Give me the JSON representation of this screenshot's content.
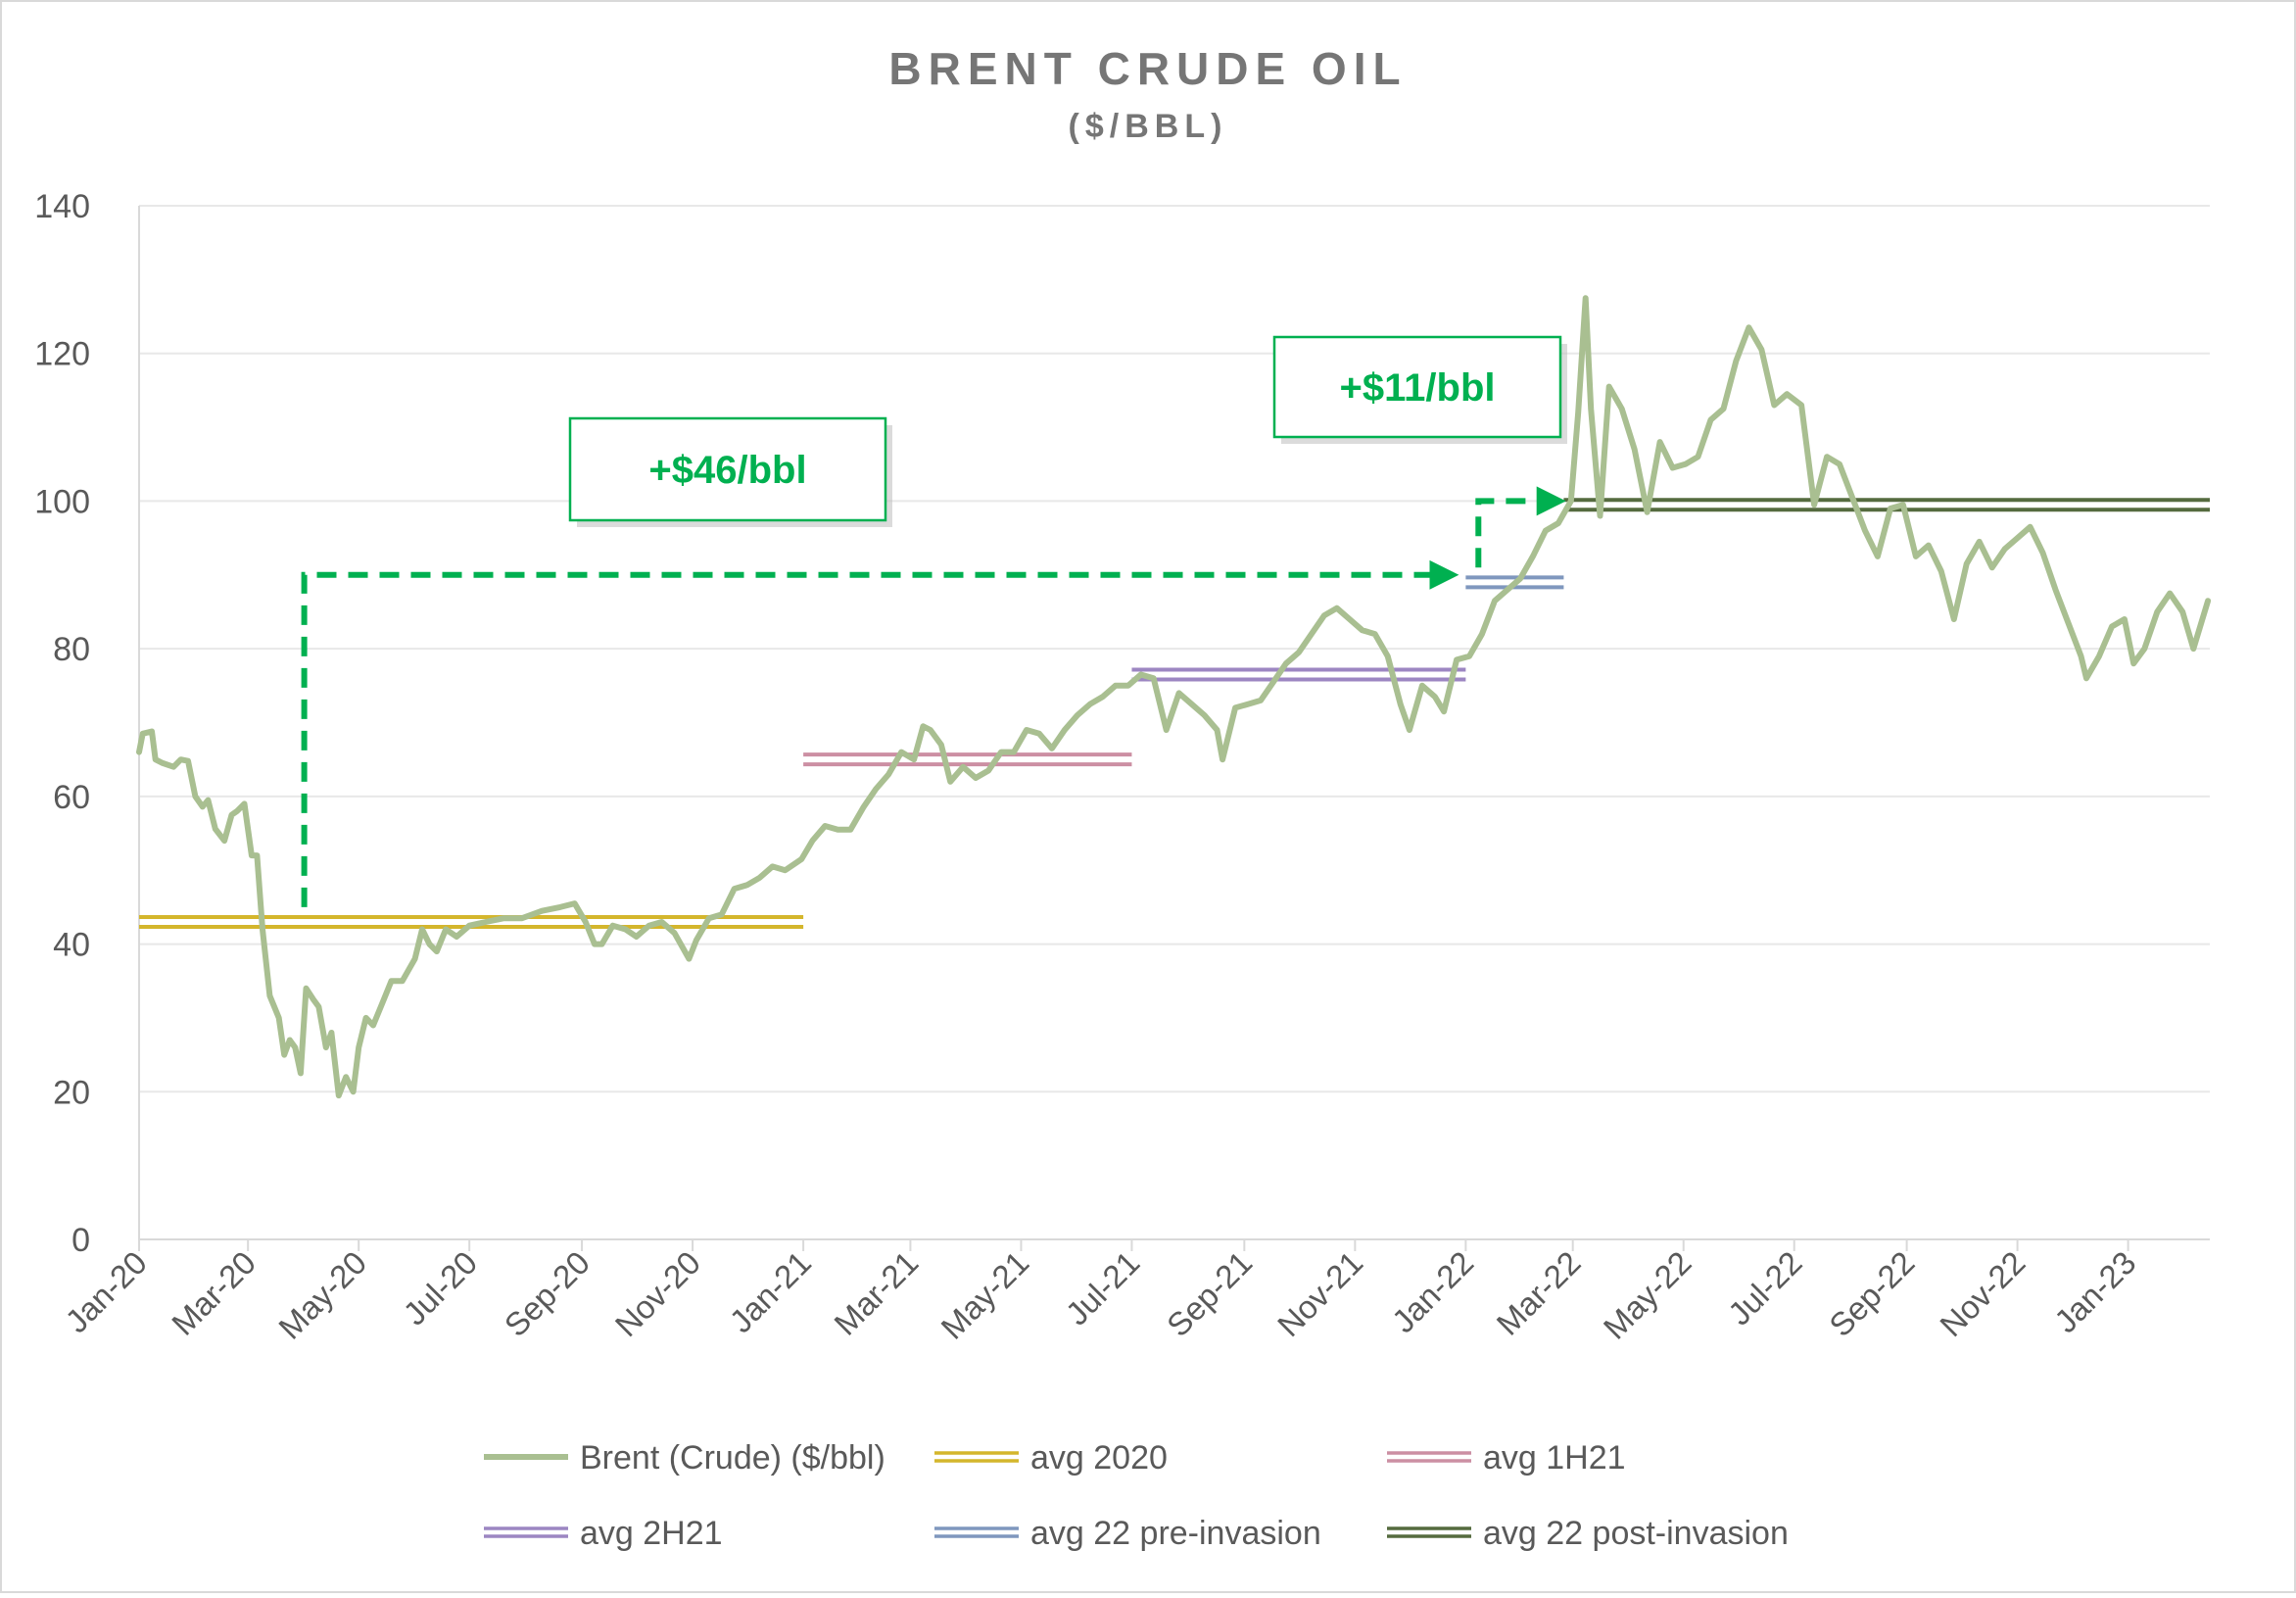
{
  "chart_data": {
    "type": "line",
    "title": "BRENT CRUDE OIL",
    "subtitle": "($/BBL)",
    "xlabel": "",
    "ylabel": "",
    "ylim": [
      0,
      140
    ],
    "yticks": [
      "0",
      "20",
      "40",
      "60",
      "80",
      "100",
      "120",
      "140"
    ],
    "xlim": [
      "2020-01-01",
      "2023-02-15"
    ],
    "xticks": [
      {
        "date": "2020-01-01",
        "label": "Jan-20"
      },
      {
        "date": "2020-03-01",
        "label": "Mar-20"
      },
      {
        "date": "2020-05-01",
        "label": "May-20"
      },
      {
        "date": "2020-07-01",
        "label": "Jul-20"
      },
      {
        "date": "2020-09-01",
        "label": "Sep-20"
      },
      {
        "date": "2020-11-01",
        "label": "Nov-20"
      },
      {
        "date": "2021-01-01",
        "label": "Jan-21"
      },
      {
        "date": "2021-03-01",
        "label": "Mar-21"
      },
      {
        "date": "2021-05-01",
        "label": "May-21"
      },
      {
        "date": "2021-07-01",
        "label": "Jul-21"
      },
      {
        "date": "2021-09-01",
        "label": "Sep-21"
      },
      {
        "date": "2021-11-01",
        "label": "Nov-21"
      },
      {
        "date": "2022-01-01",
        "label": "Jan-22"
      },
      {
        "date": "2022-03-01",
        "label": "Mar-22"
      },
      {
        "date": "2022-05-01",
        "label": "May-22"
      },
      {
        "date": "2022-07-01",
        "label": "Jul-22"
      },
      {
        "date": "2022-09-01",
        "label": "Sep-22"
      },
      {
        "date": "2022-11-01",
        "label": "Nov-22"
      },
      {
        "date": "2023-01-01",
        "label": "Jan-23"
      }
    ],
    "grid": "horizontal",
    "legend_position": "bottom",
    "series": [
      {
        "name": "Brent (Crude) ($/bbl)",
        "color": "#A9BF91",
        "style": "line",
        "points": [
          [
            "2020-01-01",
            66
          ],
          [
            "2020-01-03",
            68.5
          ],
          [
            "2020-01-08",
            68.8
          ],
          [
            "2020-01-10",
            65
          ],
          [
            "2020-01-14",
            64.5
          ],
          [
            "2020-01-20",
            64
          ],
          [
            "2020-01-24",
            65
          ],
          [
            "2020-01-28",
            64.8
          ],
          [
            "2020-02-01",
            60
          ],
          [
            "2020-02-05",
            58.6
          ],
          [
            "2020-02-08",
            59.5
          ],
          [
            "2020-02-12",
            55.6
          ],
          [
            "2020-02-17",
            54
          ],
          [
            "2020-02-21",
            57.5
          ],
          [
            "2020-02-24",
            58
          ],
          [
            "2020-02-28",
            59
          ],
          [
            "2020-03-03",
            52
          ],
          [
            "2020-03-06",
            52
          ],
          [
            "2020-03-09",
            42
          ],
          [
            "2020-03-13",
            33
          ],
          [
            "2020-03-18",
            30
          ],
          [
            "2020-03-21",
            25
          ],
          [
            "2020-03-24",
            27
          ],
          [
            "2020-03-27",
            26
          ],
          [
            "2020-03-30",
            22.5
          ],
          [
            "2020-04-02",
            34
          ],
          [
            "2020-04-06",
            32.5
          ],
          [
            "2020-04-09",
            31.5
          ],
          [
            "2020-04-13",
            26
          ],
          [
            "2020-04-16",
            28
          ],
          [
            "2020-04-20",
            19.5
          ],
          [
            "2020-04-24",
            22
          ],
          [
            "2020-04-28",
            20
          ],
          [
            "2020-05-01",
            26
          ],
          [
            "2020-05-05",
            30
          ],
          [
            "2020-05-09",
            29
          ],
          [
            "2020-05-14",
            32
          ],
          [
            "2020-05-19",
            35
          ],
          [
            "2020-05-25",
            35
          ],
          [
            "2020-06-01",
            38
          ],
          [
            "2020-06-05",
            42
          ],
          [
            "2020-06-09",
            40
          ],
          [
            "2020-06-13",
            39
          ],
          [
            "2020-06-18",
            42
          ],
          [
            "2020-06-24",
            41
          ],
          [
            "2020-07-01",
            42.5
          ],
          [
            "2020-07-10",
            43
          ],
          [
            "2020-07-20",
            43.5
          ],
          [
            "2020-07-30",
            43.5
          ],
          [
            "2020-08-10",
            44.5
          ],
          [
            "2020-08-20",
            45
          ],
          [
            "2020-08-28",
            45.5
          ],
          [
            "2020-09-03",
            43
          ],
          [
            "2020-09-08",
            40
          ],
          [
            "2020-09-12",
            40
          ],
          [
            "2020-09-18",
            42.5
          ],
          [
            "2020-09-25",
            42
          ],
          [
            "2020-10-01",
            41
          ],
          [
            "2020-10-08",
            42.5
          ],
          [
            "2020-10-15",
            43
          ],
          [
            "2020-10-22",
            41.5
          ],
          [
            "2020-10-30",
            38
          ],
          [
            "2020-11-03",
            40.5
          ],
          [
            "2020-11-10",
            43.5
          ],
          [
            "2020-11-17",
            44
          ],
          [
            "2020-11-24",
            47.5
          ],
          [
            "2020-12-01",
            48
          ],
          [
            "2020-12-08",
            49
          ],
          [
            "2020-12-15",
            50.5
          ],
          [
            "2020-12-22",
            50
          ],
          [
            "2020-12-31",
            51.5
          ],
          [
            "2021-01-06",
            54
          ],
          [
            "2021-01-13",
            56
          ],
          [
            "2021-01-20",
            55.5
          ],
          [
            "2021-01-27",
            55.5
          ],
          [
            "2021-02-03",
            58.5
          ],
          [
            "2021-02-10",
            61
          ],
          [
            "2021-02-17",
            63
          ],
          [
            "2021-02-24",
            66
          ],
          [
            "2021-03-03",
            65
          ],
          [
            "2021-03-08",
            69.5
          ],
          [
            "2021-03-12",
            69
          ],
          [
            "2021-03-18",
            67
          ],
          [
            "2021-03-23",
            62
          ],
          [
            "2021-03-30",
            64
          ],
          [
            "2021-04-06",
            62.5
          ],
          [
            "2021-04-13",
            63.5
          ],
          [
            "2021-04-20",
            66
          ],
          [
            "2021-04-27",
            66
          ],
          [
            "2021-05-04",
            69
          ],
          [
            "2021-05-11",
            68.5
          ],
          [
            "2021-05-18",
            66.5
          ],
          [
            "2021-05-25",
            69
          ],
          [
            "2021-06-01",
            71
          ],
          [
            "2021-06-08",
            72.5
          ],
          [
            "2021-06-15",
            73.5
          ],
          [
            "2021-06-22",
            75
          ],
          [
            "2021-06-29",
            75
          ],
          [
            "2021-07-06",
            76.5
          ],
          [
            "2021-07-13",
            76
          ],
          [
            "2021-07-20",
            69
          ],
          [
            "2021-07-27",
            74
          ],
          [
            "2021-08-03",
            72.5
          ],
          [
            "2021-08-10",
            71
          ],
          [
            "2021-08-17",
            69
          ],
          [
            "2021-08-20",
            65
          ],
          [
            "2021-08-27",
            72
          ],
          [
            "2021-09-03",
            72.5
          ],
          [
            "2021-09-10",
            73
          ],
          [
            "2021-09-17",
            75.5
          ],
          [
            "2021-09-24",
            78
          ],
          [
            "2021-10-01",
            79.5
          ],
          [
            "2021-10-08",
            82
          ],
          [
            "2021-10-15",
            84.5
          ],
          [
            "2021-10-22",
            85.5
          ],
          [
            "2021-10-29",
            84
          ],
          [
            "2021-11-05",
            82.5
          ],
          [
            "2021-11-12",
            82
          ],
          [
            "2021-11-19",
            79
          ],
          [
            "2021-11-26",
            72.5
          ],
          [
            "2021-12-01",
            69
          ],
          [
            "2021-12-08",
            75
          ],
          [
            "2021-12-15",
            73.5
          ],
          [
            "2021-12-20",
            71.5
          ],
          [
            "2021-12-27",
            78.5
          ],
          [
            "2022-01-03",
            79
          ],
          [
            "2022-01-10",
            82
          ],
          [
            "2022-01-17",
            86.5
          ],
          [
            "2022-01-24",
            88
          ],
          [
            "2022-01-31",
            89.5
          ],
          [
            "2022-02-07",
            92.5
          ],
          [
            "2022-02-14",
            96
          ],
          [
            "2022-02-21",
            97
          ],
          [
            "2022-02-28",
            100
          ],
          [
            "2022-03-04",
            112
          ],
          [
            "2022-03-08",
            127.5
          ],
          [
            "2022-03-11",
            112.5
          ],
          [
            "2022-03-16",
            98
          ],
          [
            "2022-03-21",
            115.5
          ],
          [
            "2022-03-28",
            112.5
          ],
          [
            "2022-04-04",
            107
          ],
          [
            "2022-04-11",
            98.5
          ],
          [
            "2022-04-18",
            108
          ],
          [
            "2022-04-25",
            104.5
          ],
          [
            "2022-05-02",
            105
          ],
          [
            "2022-05-09",
            106
          ],
          [
            "2022-05-16",
            111
          ],
          [
            "2022-05-23",
            112.5
          ],
          [
            "2022-05-30",
            119
          ],
          [
            "2022-06-06",
            123.5
          ],
          [
            "2022-06-13",
            120.5
          ],
          [
            "2022-06-20",
            113
          ],
          [
            "2022-06-27",
            114.5
          ],
          [
            "2022-07-05",
            113
          ],
          [
            "2022-07-12",
            99.5
          ],
          [
            "2022-07-19",
            106
          ],
          [
            "2022-07-26",
            105
          ],
          [
            "2022-08-02",
            100.5
          ],
          [
            "2022-08-09",
            96
          ],
          [
            "2022-08-16",
            92.5
          ],
          [
            "2022-08-23",
            99
          ],
          [
            "2022-08-30",
            99.5
          ],
          [
            "2022-09-06",
            92.5
          ],
          [
            "2022-09-13",
            94
          ],
          [
            "2022-09-20",
            90.5
          ],
          [
            "2022-09-27",
            84
          ],
          [
            "2022-10-04",
            91.5
          ],
          [
            "2022-10-11",
            94.5
          ],
          [
            "2022-10-18",
            91
          ],
          [
            "2022-10-25",
            93.5
          ],
          [
            "2022-11-01",
            95
          ],
          [
            "2022-11-08",
            96.5
          ],
          [
            "2022-11-15",
            93
          ],
          [
            "2022-11-22",
            88
          ],
          [
            "2022-11-29",
            83.5
          ],
          [
            "2022-12-06",
            79
          ],
          [
            "2022-12-09",
            76
          ],
          [
            "2022-12-16",
            79
          ],
          [
            "2022-12-23",
            83
          ],
          [
            "2022-12-30",
            84
          ],
          [
            "2023-01-04",
            78
          ],
          [
            "2023-01-10",
            80
          ],
          [
            "2023-01-17",
            85
          ],
          [
            "2023-01-24",
            87.5
          ],
          [
            "2023-01-31",
            85
          ],
          [
            "2023-02-06",
            80
          ],
          [
            "2023-02-14",
            86.5
          ]
        ]
      },
      {
        "name": "avg 2020",
        "color": "#D4B62C",
        "style": "double",
        "value": 43,
        "start": "2020-01-01",
        "end": "2021-01-01"
      },
      {
        "name": "avg 1H21",
        "color": "#CC8FA3",
        "style": "double",
        "value": 65,
        "start": "2021-01-01",
        "end": "2021-07-01"
      },
      {
        "name": "avg 2H21",
        "color": "#9C86C2",
        "style": "double",
        "value": 76.5,
        "start": "2021-07-01",
        "end": "2022-01-01"
      },
      {
        "name": "avg 22 pre-invasion",
        "color": "#7F97BE",
        "style": "double",
        "value": 89,
        "start": "2022-01-01",
        "end": "2022-02-24"
      },
      {
        "name": "avg 22 post-invasion",
        "color": "#556B3F",
        "style": "double",
        "value": 99.5,
        "start": "2022-02-24",
        "end": "2023-02-15"
      }
    ],
    "annotations": [
      {
        "text": "+$46/bbl",
        "color": "#00B050",
        "from": {
          "date": "2020-04-01",
          "value": 45
        },
        "to": {
          "date": "2021-12-25",
          "value": 90
        }
      },
      {
        "text": "+$11/bbl",
        "color": "#00B050",
        "from": {
          "date": "2022-01-08",
          "value": 91
        },
        "to": {
          "date": "2022-02-22",
          "value": 100
        }
      }
    ]
  }
}
